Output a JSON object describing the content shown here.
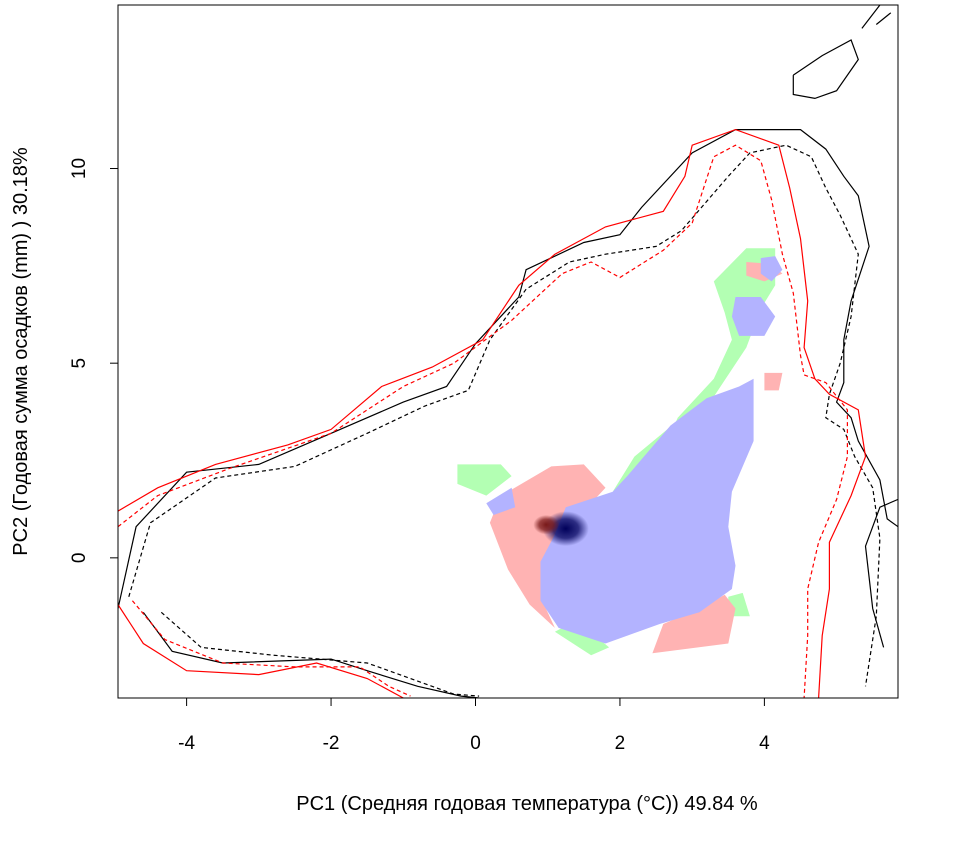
{
  "chart_data": {
    "type": "heatmap",
    "title": "",
    "xlabel": "PC1 (Средняя годовая температура (°C)) 49.84 %",
    "ylabel": "PC2 (Годовая сумма осадков  (mm) ) 30.18%",
    "xlim": [
      -4.95,
      5.85
    ],
    "ylim": [
      -3.6,
      14.2
    ],
    "x_ticks": [
      -4,
      -2,
      0,
      2,
      4
    ],
    "y_ticks": [
      0,
      5,
      10
    ],
    "x_tick_labels": [
      "-4",
      "-2",
      "0",
      "2",
      "4"
    ],
    "y_tick_labels": [
      "0",
      "5",
      "10"
    ],
    "grid": false,
    "colors": {
      "green": "#b3ffb3",
      "pink": "#ffb3b3",
      "blue": "#b3b3ff",
      "dark_blue": "#00005a",
      "dark_red": "#7a1a1a",
      "black_line": "#000000",
      "red_line": "#ff0000"
    },
    "regions": [
      {
        "name": "green",
        "polygon": [
          [
            -0.25,
            2.4
          ],
          [
            0.35,
            2.4
          ],
          [
            0.5,
            2.1
          ],
          [
            0.15,
            1.6
          ],
          [
            -0.25,
            1.9
          ]
        ]
      },
      {
        "name": "green",
        "polygon": [
          [
            1.9,
            1.7
          ],
          [
            2.55,
            2.55
          ],
          [
            2.8,
            3.6
          ],
          [
            3.3,
            4.6
          ],
          [
            3.55,
            5.6
          ],
          [
            3.45,
            6.3
          ],
          [
            3.3,
            7.1
          ],
          [
            3.75,
            7.95
          ],
          [
            4.15,
            7.95
          ],
          [
            4.15,
            7.0
          ],
          [
            3.95,
            6.4
          ],
          [
            3.75,
            5.4
          ],
          [
            3.25,
            4.0
          ],
          [
            2.85,
            3.6
          ],
          [
            2.2,
            2.6
          ]
        ]
      },
      {
        "name": "green",
        "polygon": [
          [
            1.1,
            -1.9
          ],
          [
            1.6,
            -2.5
          ],
          [
            1.85,
            -2.3
          ],
          [
            1.4,
            -1.6
          ]
        ]
      },
      {
        "name": "green",
        "polygon": [
          [
            3.5,
            -1.5
          ],
          [
            3.8,
            -1.5
          ],
          [
            3.7,
            -0.9
          ],
          [
            3.5,
            -1.0
          ]
        ]
      },
      {
        "name": "pink",
        "polygon": [
          [
            0.45,
            1.7
          ],
          [
            1.05,
            2.35
          ],
          [
            1.5,
            2.4
          ],
          [
            1.8,
            1.8
          ],
          [
            1.4,
            1.0
          ],
          [
            1.1,
            0.6
          ],
          [
            0.9,
            -0.3
          ],
          [
            0.95,
            -1.2
          ],
          [
            1.1,
            -1.8
          ],
          [
            0.75,
            -1.2
          ],
          [
            0.45,
            -0.3
          ],
          [
            0.2,
            0.9
          ],
          [
            0.35,
            1.6
          ]
        ]
      },
      {
        "name": "pink",
        "polygon": [
          [
            2.45,
            -2.45
          ],
          [
            3.5,
            -2.2
          ],
          [
            3.6,
            -1.3
          ],
          [
            3.45,
            -0.95
          ],
          [
            3.1,
            -1.3
          ],
          [
            2.6,
            -1.7
          ]
        ]
      },
      {
        "name": "pink",
        "polygon": [
          [
            4.0,
            4.75
          ],
          [
            4.25,
            4.75
          ],
          [
            4.2,
            4.3
          ],
          [
            4.0,
            4.3
          ]
        ]
      },
      {
        "name": "pink",
        "polygon": [
          [
            3.75,
            7.6
          ],
          [
            4.1,
            7.55
          ],
          [
            4.25,
            7.3
          ],
          [
            4.0,
            7.1
          ],
          [
            3.75,
            7.25
          ]
        ]
      },
      {
        "name": "blue",
        "polygon": [
          [
            0.15,
            1.4
          ],
          [
            0.5,
            1.8
          ],
          [
            0.55,
            1.3
          ],
          [
            0.25,
            1.1
          ]
        ]
      },
      {
        "name": "blue",
        "polygon": [
          [
            1.25,
            1.3
          ],
          [
            1.9,
            1.7
          ],
          [
            2.1,
            2.1
          ],
          [
            2.7,
            3.4
          ],
          [
            3.2,
            4.1
          ],
          [
            3.65,
            4.4
          ],
          [
            3.85,
            4.6
          ],
          [
            3.85,
            3.0
          ],
          [
            3.55,
            1.7
          ],
          [
            3.5,
            0.8
          ],
          [
            3.6,
            -0.2
          ],
          [
            3.55,
            -0.8
          ],
          [
            3.1,
            -1.4
          ],
          [
            2.55,
            -1.7
          ],
          [
            1.8,
            -2.2
          ],
          [
            1.15,
            -1.8
          ],
          [
            0.9,
            -1.1
          ],
          [
            0.9,
            -0.1
          ],
          [
            1.1,
            0.6
          ]
        ]
      },
      {
        "name": "blue",
        "polygon": [
          [
            3.6,
            6.7
          ],
          [
            3.95,
            6.7
          ],
          [
            4.15,
            6.2
          ],
          [
            4.0,
            5.7
          ],
          [
            3.65,
            5.7
          ],
          [
            3.55,
            6.2
          ]
        ]
      },
      {
        "name": "blue",
        "polygon": [
          [
            3.95,
            7.7
          ],
          [
            4.15,
            7.75
          ],
          [
            4.25,
            7.4
          ],
          [
            4.1,
            7.1
          ],
          [
            3.95,
            7.3
          ]
        ]
      }
    ],
    "dark_spots": [
      {
        "color": "dark_blue",
        "center": [
          1.25,
          0.75
        ],
        "radius": 0.32
      },
      {
        "color": "dark_red",
        "center": [
          0.98,
          0.85
        ],
        "radius": 0.18
      }
    ],
    "contours": [
      {
        "color": "black_line",
        "style": "solid",
        "points": [
          [
            -4.95,
            -1.3
          ],
          [
            -4.7,
            0.8
          ],
          [
            -4.0,
            2.2
          ],
          [
            -3.0,
            2.4
          ],
          [
            -2.0,
            3.2
          ],
          [
            -1.0,
            4.0
          ],
          [
            -0.4,
            4.4
          ],
          [
            0.0,
            5.5
          ],
          [
            0.6,
            6.7
          ],
          [
            0.7,
            7.4
          ],
          [
            1.5,
            8.1
          ],
          [
            2.0,
            8.3
          ],
          [
            2.3,
            9.0
          ],
          [
            3.0,
            10.4
          ],
          [
            3.6,
            11.0
          ],
          [
            4.5,
            11.0
          ],
          [
            4.85,
            10.5
          ],
          [
            5.1,
            9.8
          ],
          [
            5.3,
            9.3
          ],
          [
            5.45,
            8.0
          ],
          [
            5.2,
            6.6
          ],
          [
            5.1,
            5.6
          ],
          [
            5.1,
            4.5
          ],
          [
            5.0,
            4.0
          ],
          [
            5.2,
            3.6
          ],
          [
            5.3,
            3.0
          ],
          [
            5.6,
            2.0
          ],
          [
            5.7,
            1.0
          ],
          [
            5.85,
            0.8
          ]
        ]
      },
      {
        "color": "black_line",
        "style": "solid",
        "points": [
          [
            -4.6,
            -1.4
          ],
          [
            -4.2,
            -2.4
          ],
          [
            -3.5,
            -2.7
          ],
          [
            -2.0,
            -2.6
          ],
          [
            -1.5,
            -2.9
          ],
          [
            -0.8,
            -3.3
          ],
          [
            -0.2,
            -3.55
          ],
          [
            0.05,
            -3.6
          ]
        ]
      },
      {
        "color": "black_line",
        "style": "dashed",
        "points": [
          [
            -4.8,
            -1.0
          ],
          [
            -4.5,
            0.9
          ],
          [
            -3.6,
            2.05
          ],
          [
            -2.5,
            2.35
          ],
          [
            -1.5,
            3.2
          ],
          [
            -0.7,
            3.9
          ],
          [
            -0.1,
            4.3
          ],
          [
            0.2,
            5.6
          ],
          [
            0.7,
            6.9
          ],
          [
            1.3,
            7.6
          ],
          [
            1.8,
            7.8
          ],
          [
            2.5,
            8.0
          ],
          [
            2.85,
            8.4
          ],
          [
            3.5,
            9.8
          ],
          [
            3.8,
            10.4
          ],
          [
            4.3,
            10.6
          ],
          [
            4.65,
            10.3
          ],
          [
            4.85,
            9.5
          ],
          [
            5.05,
            8.8
          ],
          [
            5.3,
            7.8
          ],
          [
            5.2,
            6.2
          ],
          [
            5.05,
            5.0
          ],
          [
            4.9,
            4.2
          ],
          [
            4.85,
            3.6
          ],
          [
            5.1,
            3.3
          ],
          [
            5.25,
            2.6
          ],
          [
            5.5,
            1.8
          ],
          [
            5.6,
            0.5
          ],
          [
            5.55,
            -1.5
          ],
          [
            5.4,
            -3.3
          ]
        ]
      },
      {
        "color": "black_line",
        "style": "dashed",
        "points": [
          [
            -4.35,
            -1.4
          ],
          [
            -3.8,
            -2.3
          ],
          [
            -2.8,
            -2.5
          ],
          [
            -1.5,
            -2.7
          ],
          [
            -0.9,
            -3.1
          ],
          [
            -0.3,
            -3.5
          ],
          [
            0.05,
            -3.55
          ]
        ]
      },
      {
        "color": "black_line",
        "style": "solid",
        "points": [
          [
            5.65,
            -2.3
          ],
          [
            5.5,
            -1.3
          ],
          [
            5.4,
            0.3
          ],
          [
            5.6,
            1.3
          ],
          [
            5.85,
            1.5
          ]
        ]
      },
      {
        "color": "black_line",
        "style": "solid",
        "points": [
          [
            4.4,
            12.4
          ],
          [
            4.8,
            12.9
          ],
          [
            5.2,
            13.3
          ],
          [
            5.3,
            12.8
          ],
          [
            5.0,
            12.0
          ],
          [
            4.7,
            11.8
          ],
          [
            4.4,
            11.9
          ],
          [
            4.4,
            12.4
          ]
        ]
      },
      {
        "color": "black_line",
        "style": "solid",
        "points": [
          [
            5.35,
            13.6
          ],
          [
            5.6,
            14.2
          ]
        ]
      },
      {
        "color": "black_line",
        "style": "solid",
        "points": [
          [
            5.55,
            13.7
          ],
          [
            5.75,
            14.0
          ]
        ]
      },
      {
        "color": "red_line",
        "style": "solid",
        "points": [
          [
            -4.95,
            1.2
          ],
          [
            -4.4,
            1.8
          ],
          [
            -3.6,
            2.4
          ],
          [
            -2.6,
            2.9
          ],
          [
            -2.0,
            3.3
          ],
          [
            -1.3,
            4.4
          ],
          [
            -0.6,
            4.9
          ],
          [
            0.1,
            5.6
          ],
          [
            0.6,
            7.0
          ],
          [
            1.1,
            7.8
          ],
          [
            1.8,
            8.5
          ],
          [
            2.6,
            8.9
          ],
          [
            2.9,
            9.8
          ],
          [
            3.0,
            10.6
          ],
          [
            3.6,
            11.0
          ],
          [
            4.2,
            10.6
          ],
          [
            4.35,
            9.5
          ],
          [
            4.5,
            8.2
          ],
          [
            4.6,
            6.6
          ],
          [
            4.55,
            5.4
          ],
          [
            4.7,
            4.6
          ],
          [
            4.9,
            4.2
          ],
          [
            5.3,
            3.8
          ],
          [
            5.4,
            2.6
          ],
          [
            5.2,
            1.6
          ],
          [
            4.9,
            0.4
          ],
          [
            4.9,
            -0.8
          ],
          [
            4.8,
            -2.0
          ],
          [
            4.75,
            -3.6
          ]
        ]
      },
      {
        "color": "red_line",
        "style": "solid",
        "points": [
          [
            -4.95,
            -1.2
          ],
          [
            -4.6,
            -2.2
          ],
          [
            -4.0,
            -2.9
          ],
          [
            -3.0,
            -3.0
          ],
          [
            -2.2,
            -2.7
          ],
          [
            -1.5,
            -3.1
          ],
          [
            -1.0,
            -3.6
          ]
        ]
      },
      {
        "color": "red_line",
        "style": "dashed",
        "points": [
          [
            -4.95,
            0.8
          ],
          [
            -4.4,
            1.6
          ],
          [
            -3.4,
            2.3
          ],
          [
            -2.0,
            3.2
          ],
          [
            -1.0,
            4.4
          ],
          [
            -0.3,
            5.0
          ],
          [
            0.5,
            6.1
          ],
          [
            1.2,
            7.3
          ],
          [
            1.6,
            7.6
          ],
          [
            2.0,
            7.2
          ],
          [
            2.6,
            7.9
          ],
          [
            3.0,
            8.6
          ],
          [
            3.3,
            10.3
          ],
          [
            3.6,
            10.6
          ],
          [
            3.95,
            10.2
          ],
          [
            4.1,
            9.2
          ],
          [
            4.25,
            7.8
          ],
          [
            4.4,
            6.8
          ],
          [
            4.5,
            5.2
          ],
          [
            4.55,
            4.7
          ],
          [
            4.85,
            4.5
          ],
          [
            5.15,
            3.8
          ],
          [
            5.15,
            2.6
          ],
          [
            5.0,
            1.5
          ],
          [
            4.75,
            0.4
          ],
          [
            4.6,
            -0.8
          ],
          [
            4.6,
            -2.0
          ],
          [
            4.55,
            -3.6
          ]
        ]
      },
      {
        "color": "red_line",
        "style": "dashed",
        "points": [
          [
            -4.75,
            -1.1
          ],
          [
            -4.3,
            -2.1
          ],
          [
            -3.5,
            -2.7
          ],
          [
            -2.5,
            -2.8
          ],
          [
            -1.6,
            -2.8
          ],
          [
            -1.2,
            -3.3
          ],
          [
            -0.9,
            -3.55
          ]
        ]
      }
    ]
  }
}
